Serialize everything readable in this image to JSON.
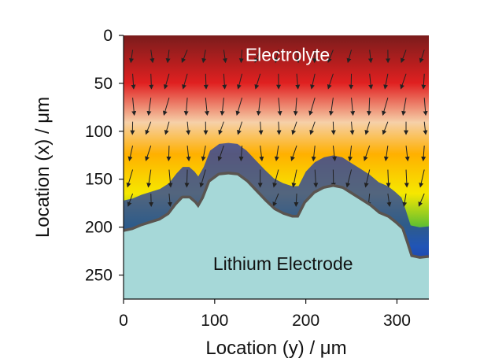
{
  "chart_data": {
    "type": "heatmap",
    "xlabel": "Location (y) / μm",
    "ylabel": "Location (x) / μm",
    "xlim": [
      0,
      335
    ],
    "ylim": [
      0,
      275
    ],
    "y_inverted": true,
    "x_ticks": [
      0,
      100,
      200,
      300
    ],
    "y_ticks": [
      0,
      50,
      100,
      150,
      200,
      250
    ],
    "annotations": [
      {
        "text": "Electrolyte",
        "x": 180,
        "y": 20,
        "color": "#ffffff"
      },
      {
        "text": "Lithium Electrode",
        "x": 175,
        "y": 238,
        "color": "#111111"
      }
    ],
    "colormap": [
      "#7a1c1c",
      "#e02020",
      "#f6d0a8",
      "#ffb000",
      "#f6e800",
      "#64c030",
      "#2fa8e0",
      "#1c3aa8"
    ],
    "electrode_color": "#a6d8d8",
    "deposit_color": "#5a5450",
    "electrode_surface": [
      [
        0,
        205
      ],
      [
        10,
        203
      ],
      [
        20,
        199
      ],
      [
        30,
        196
      ],
      [
        40,
        193
      ],
      [
        50,
        187
      ],
      [
        58,
        177
      ],
      [
        65,
        170
      ],
      [
        72,
        170
      ],
      [
        78,
        175
      ],
      [
        82,
        180
      ],
      [
        88,
        170
      ],
      [
        95,
        153
      ],
      [
        105,
        146
      ],
      [
        115,
        145
      ],
      [
        125,
        146
      ],
      [
        135,
        153
      ],
      [
        145,
        163
      ],
      [
        155,
        173
      ],
      [
        165,
        182
      ],
      [
        175,
        187
      ],
      [
        185,
        190
      ],
      [
        192,
        190
      ],
      [
        200,
        175
      ],
      [
        210,
        165
      ],
      [
        220,
        160
      ],
      [
        230,
        158
      ],
      [
        240,
        160
      ],
      [
        250,
        166
      ],
      [
        260,
        172
      ],
      [
        270,
        178
      ],
      [
        280,
        186
      ],
      [
        290,
        190
      ],
      [
        298,
        196
      ],
      [
        305,
        202
      ],
      [
        310,
        216
      ],
      [
        315,
        231
      ],
      [
        325,
        233
      ],
      [
        335,
        232
      ]
    ],
    "field_vectors": {
      "x": [
        10,
        30,
        50,
        70,
        90,
        110,
        130,
        150,
        170,
        190,
        210,
        230,
        250,
        270,
        290,
        310,
        330
      ],
      "y": [
        15,
        40,
        65,
        90,
        115,
        140,
        165
      ],
      "direction": "down-toward-electrode"
    }
  }
}
